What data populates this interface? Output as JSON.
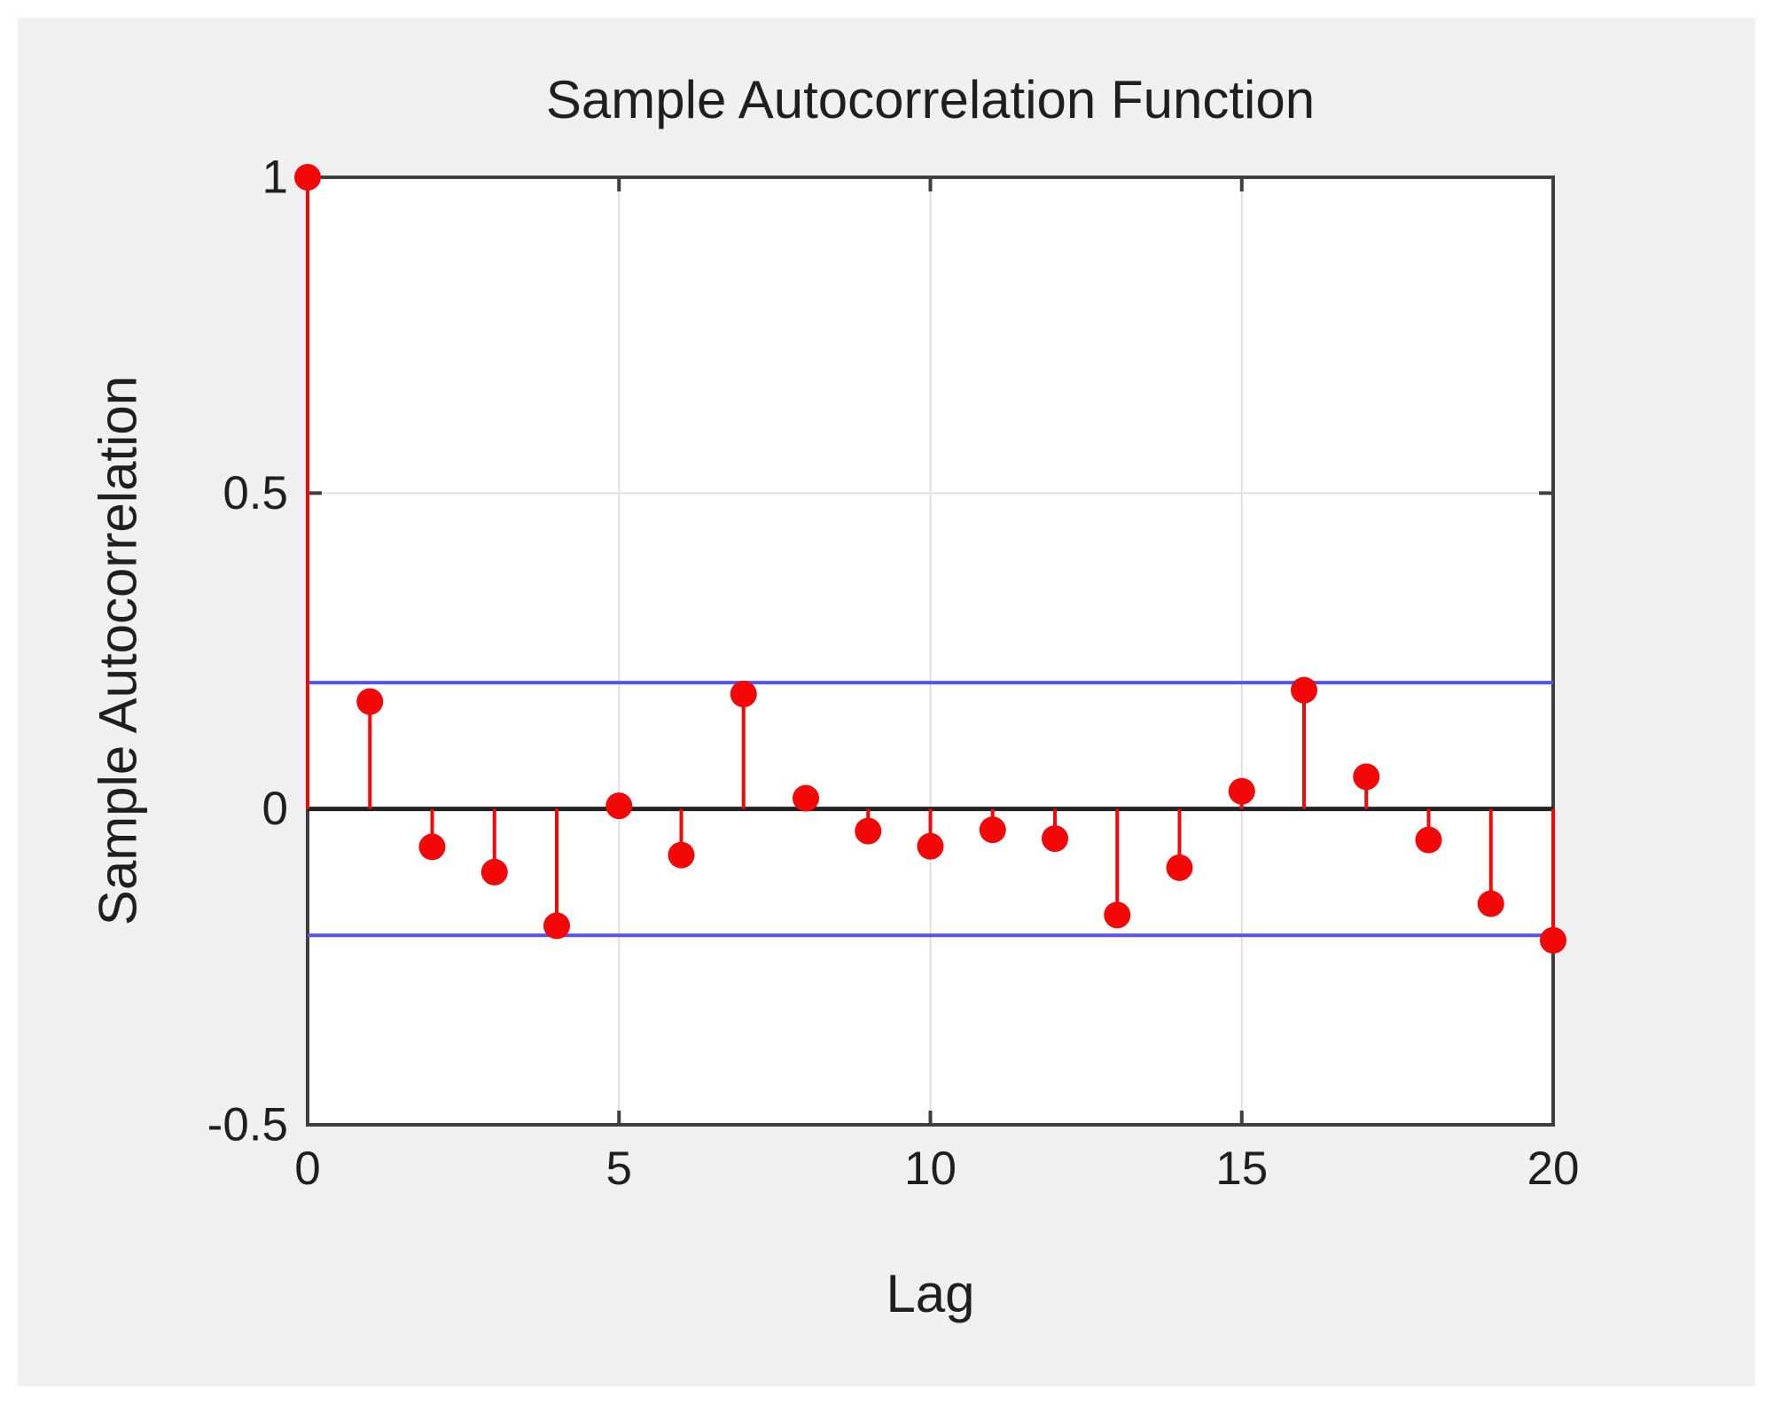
{
  "chart_data": {
    "type": "stem",
    "title": "Sample Autocorrelation Function",
    "xlabel": "Lag",
    "ylabel": "Sample Autocorrelation",
    "xlim": [
      0,
      20
    ],
    "ylim": [
      -0.5,
      1
    ],
    "xticks": {
      "values": [
        0,
        5,
        10,
        15,
        20
      ],
      "labels": [
        "0",
        "5",
        "10",
        "15",
        "20"
      ]
    },
    "yticks": {
      "values": [
        -0.5,
        0,
        0.5,
        1
      ],
      "labels": [
        "-0.5",
        "0",
        "0.5",
        "1"
      ]
    },
    "grid": {
      "vertical_at": [
        5,
        10,
        15
      ],
      "horizontal_at": [
        0.5
      ],
      "visible": true
    },
    "legend": {
      "visible": false
    },
    "lags": [
      0,
      1,
      2,
      3,
      4,
      5,
      6,
      7,
      8,
      9,
      10,
      11,
      12,
      13,
      14,
      15,
      16,
      17,
      18,
      19,
      20
    ],
    "acf_values": [
      1.0,
      0.17,
      -0.06,
      -0.1,
      -0.185,
      0.005,
      -0.073,
      0.182,
      0.017,
      -0.035,
      -0.059,
      -0.033,
      -0.047,
      -0.168,
      -0.093,
      0.028,
      0.188,
      0.051,
      -0.049,
      -0.15,
      -0.208
    ],
    "confidence_bounds": {
      "upper": 0.2,
      "lower": -0.2
    },
    "colors": {
      "stem": "#f40707",
      "bounds": "#5252f5",
      "zero_line": "#212121",
      "axis": "#3f3f3f",
      "grid": "#e0e0e0",
      "figure_bg": "#f0f0f0",
      "plot_bg": "#ffffff",
      "text": "#1f1f1f"
    }
  }
}
